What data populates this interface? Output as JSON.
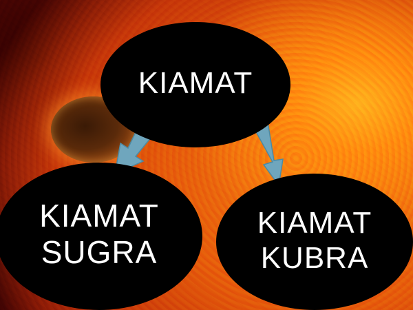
{
  "diagram": {
    "root": {
      "label": "KIAMAT"
    },
    "children": [
      {
        "label": "KIAMAT\nSUGRA"
      },
      {
        "label": "KIAMAT\nKUBRA"
      }
    ],
    "colors": {
      "node_fill": "#000000",
      "node_text": "#ffffff",
      "arrow_fill": "#6fa6bd",
      "arrow_stroke": "#4d8aa3"
    }
  }
}
